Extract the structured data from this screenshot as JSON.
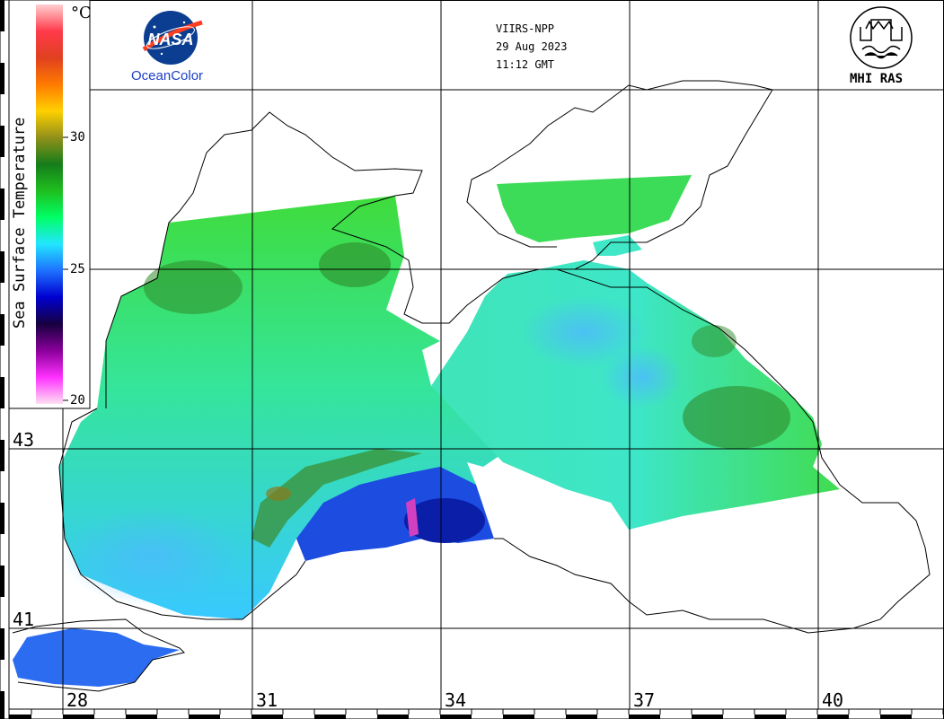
{
  "header": {
    "sensor": "VIIRS-NPP",
    "date": "29 Aug 2023",
    "time": "11:12 GMT"
  },
  "logos": {
    "nasa": {
      "text": "NASA",
      "caption": "OceanColor"
    },
    "institute": {
      "text": "MHI RAS"
    }
  },
  "colorbar": {
    "title": "Sea Surface Temperature",
    "unit": "°C",
    "ticks": [
      "30",
      "25",
      "20"
    ],
    "range": [
      20,
      32
    ],
    "gradient": [
      "#fde0f2",
      "#ff30ff",
      "#8a009a",
      "#160040",
      "#0000cf",
      "#1e70ff",
      "#22e6ff",
      "#00ff66",
      "#1fbf1f",
      "#157d1a",
      "#92901a",
      "#ffd000",
      "#ff7a00",
      "#e04020",
      "#ff3a4a",
      "#ffd0d0"
    ]
  },
  "grid": {
    "latitudes": [
      "43",
      "41"
    ],
    "longitudes": [
      "28",
      "31",
      "34",
      "37",
      "40"
    ]
  },
  "colors": {
    "warm_green": "#3fdc3c",
    "dark_green": "#2f8a2a",
    "cyan_water": "#39e8d8",
    "light_blue": "#39c4ff",
    "deep_blue": "#1030d8",
    "land": "#ffffff",
    "coastline": "#000000"
  }
}
